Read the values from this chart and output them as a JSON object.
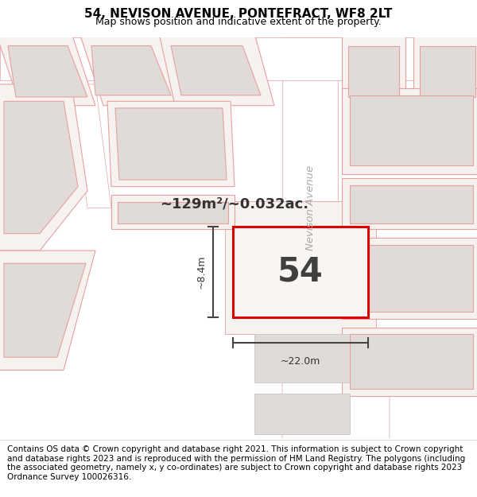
{
  "title": "54, NEVISON AVENUE, PONTEFRACT, WF8 2LT",
  "subtitle": "Map shows position and indicative extent of the property.",
  "footer": "Contains OS data © Crown copyright and database right 2021. This information is subject to Crown copyright and database rights 2023 and is reproduced with the permission of HM Land Registry. The polygons (including the associated geometry, namely x, y co-ordinates) are subject to Crown copyright and database rights 2023 Ordnance Survey 100026316.",
  "area_label": "~129m²/~0.032ac.",
  "plot_number": "54",
  "dim_width": "~22.0m",
  "dim_height": "~8.4m",
  "map_bg": "#f5f2f0",
  "road_bg": "#ffffff",
  "building_fill": "#e0dbd8",
  "plot_outline_color": "#e8a0a0",
  "plot_edge_color": "#dd0000",
  "nevison_label_color": "#aaaaaa",
  "area_label_color": "#333333",
  "title_fontsize": 11,
  "subtitle_fontsize": 9,
  "footer_fontsize": 7.5
}
